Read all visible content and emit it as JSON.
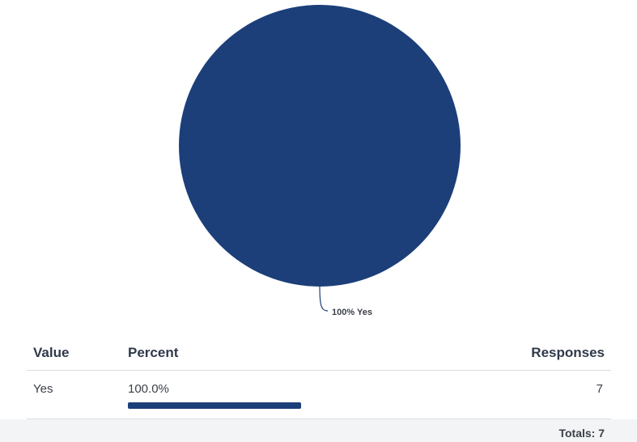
{
  "chart_data": {
    "type": "pie",
    "slices": [
      {
        "label": "Yes",
        "percent": 100,
        "color": "#1c3f7a"
      }
    ],
    "slice_labels": [
      "100% Yes"
    ]
  },
  "table": {
    "headers": {
      "value": "Value",
      "percent": "Percent",
      "responses": "Responses"
    },
    "rows": [
      {
        "value": "Yes",
        "percent": "100.0%",
        "percent_fraction": 1.0,
        "responses": "7"
      }
    ],
    "totals": "Totals: 7"
  }
}
